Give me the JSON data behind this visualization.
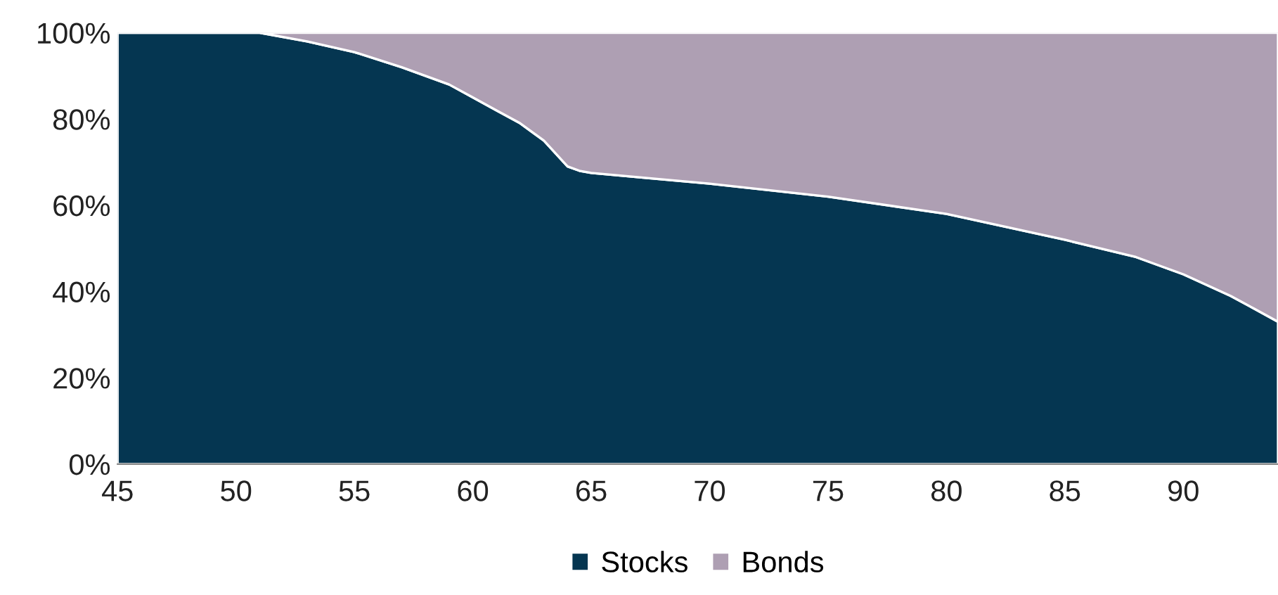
{
  "chart_data": {
    "type": "area",
    "stacked": true,
    "x": [
      45,
      50,
      51,
      53,
      55,
      57,
      59,
      60,
      61,
      62,
      63,
      64,
      64.5,
      65,
      70,
      75,
      80,
      85,
      88,
      90,
      92,
      93,
      94
    ],
    "series": [
      {
        "name": "Stocks",
        "color": "#053651",
        "values": [
          100,
          100,
          100,
          98,
          95.5,
          92,
          88,
          85,
          82,
          79,
          75,
          69,
          68,
          67.5,
          65,
          62,
          58,
          52,
          48,
          44,
          39,
          36,
          33
        ]
      },
      {
        "name": "Bonds",
        "color": "#ae9fb3",
        "values": [
          0,
          0,
          0,
          2,
          4.5,
          8,
          12,
          15,
          18,
          21,
          25,
          31,
          32,
          32.5,
          35,
          38,
          42,
          48,
          52,
          56,
          61,
          64,
          67
        ]
      }
    ],
    "xlim": [
      45,
      94
    ],
    "xticks": [
      45,
      50,
      55,
      60,
      65,
      70,
      75,
      80,
      85,
      90
    ],
    "ylim": [
      0,
      100
    ],
    "yticks": [
      {
        "value": 0,
        "label": "0%"
      },
      {
        "value": 20,
        "label": "20%"
      },
      {
        "value": 40,
        "label": "40%"
      },
      {
        "value": 60,
        "label": "60%"
      },
      {
        "value": 80,
        "label": "80%"
      },
      {
        "value": 100,
        "label": "100%"
      }
    ],
    "grid": false,
    "legend": "bottom"
  }
}
